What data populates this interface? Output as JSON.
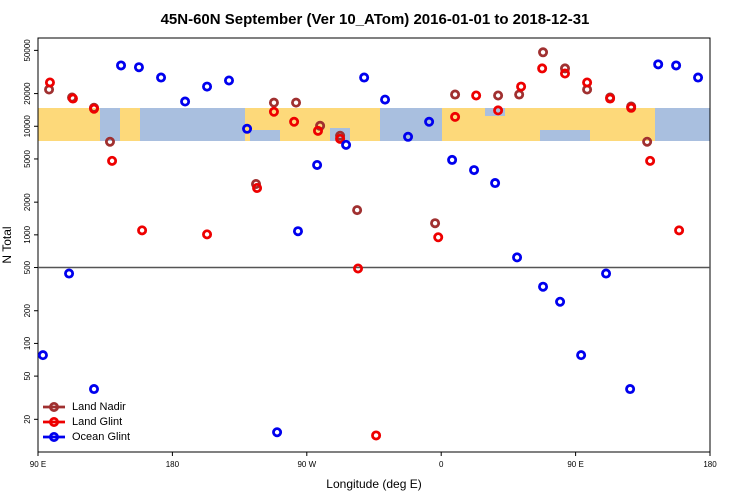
{
  "chart_data": {
    "type": "scatter",
    "title": "45N-60N September (Ver 10_ATom)   2016-01-01 to 2018-12-31",
    "x_label": "Longitude (deg E)",
    "y_label": "N Total",
    "xlim": [
      90,
      540
    ],
    "ylim": [
      10,
      65000
    ],
    "log_y": true,
    "legend": "bottom-left",
    "xticks": [
      {
        "value": 90,
        "label": "90 E"
      },
      {
        "value": 180,
        "label": "180"
      },
      {
        "value": 270,
        "label": "90 W"
      },
      {
        "value": 360,
        "label": "0"
      },
      {
        "value": 450,
        "label": "90 E"
      },
      {
        "value": 540,
        "label": "180"
      }
    ],
    "yticks": [
      20,
      50,
      100,
      200,
      500,
      1000,
      2000,
      5000,
      10000,
      20000,
      50000
    ],
    "reference_line": 500,
    "series": [
      {
        "name": "Land Nadir",
        "color": "#a03030",
        "x": [
          97.4,
          112.8,
          127.5,
          138.2,
          236,
          248,
          262.8,
          278.9,
          292.3,
          303.7,
          355.9,
          369.3,
          398.1,
          412.2,
          428.2,
          442.9,
          457.7,
          473.1,
          487.2,
          497.9
        ],
        "values": [
          21800,
          18400,
          14800,
          7200,
          2940,
          16500,
          16500,
          10100,
          8170,
          1690,
          1280,
          19600,
          19200,
          19600,
          48000,
          34100,
          21800,
          18400,
          15200,
          7200
        ]
      },
      {
        "name": "Land Glint",
        "color": "#ee0000",
        "x": [
          98,
          113.4,
          127.5,
          139.6,
          159.7,
          203.2,
          236.7,
          248,
          261.5,
          277.5,
          292.3,
          304.3,
          316.4,
          358,
          369.3,
          383.4,
          398.1,
          413.5,
          427.6,
          442.9,
          457.7,
          473.1,
          487.2,
          499.9,
          519.3
        ],
        "values": [
          25300,
          18000,
          14500,
          4800,
          1100,
          1010,
          2700,
          13600,
          11000,
          9080,
          7660,
          490,
          14.2,
          950,
          12200,
          19200,
          14000,
          23200,
          34100,
          30600,
          25300,
          18000,
          14800,
          4800,
          1100
        ]
      },
      {
        "name": "Ocean Glint",
        "color": "#0000ee",
        "x": [
          93.3,
          110.8,
          127.5,
          145.6,
          157.6,
          172.4,
          188.5,
          203.2,
          217.9,
          230,
          250.1,
          264.1,
          276.9,
          296.3,
          308.4,
          322.4,
          337.8,
          351.9,
          367.3,
          382,
          396.1,
          410.8,
          428.2,
          439.6,
          453.7,
          470.4,
          486.5,
          505.3,
          517.3,
          532
        ],
        "values": [
          78,
          440,
          38,
          36300,
          35000,
          28100,
          16900,
          23200,
          26400,
          9480,
          15.2,
          1080,
          4400,
          6740,
          28100,
          17600,
          8000,
          11000,
          4900,
          3950,
          3000,
          620,
          333,
          242,
          78,
          440,
          38,
          37200,
          36300,
          28100
        ]
      }
    ]
  }
}
